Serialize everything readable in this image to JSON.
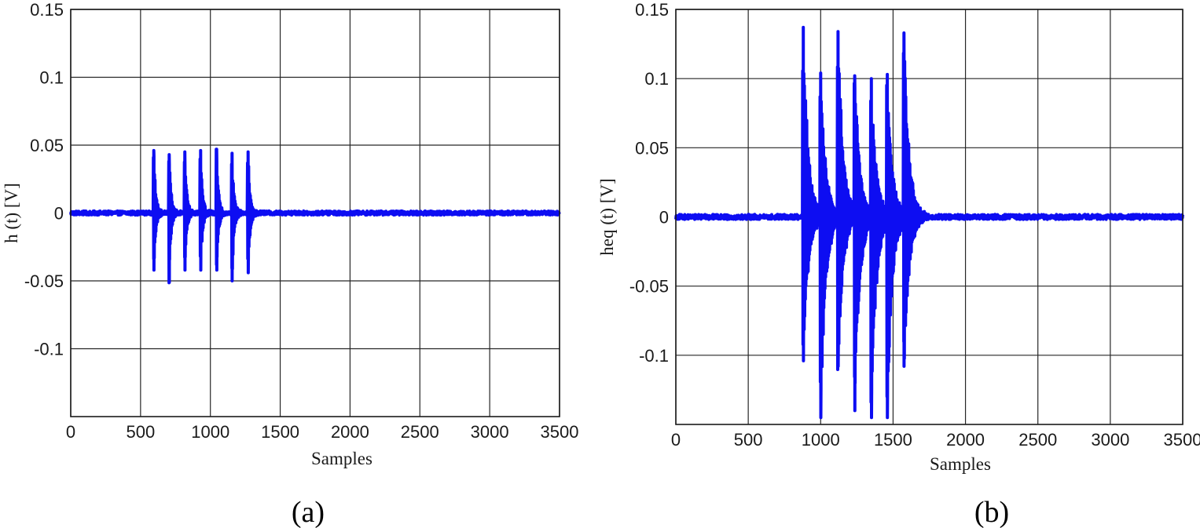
{
  "colors": {
    "series": "#0d0df2",
    "grid": "#262626",
    "background": "#ffffff"
  },
  "chart_data": [
    {
      "type": "line",
      "caption": "(a)",
      "title": "",
      "xlabel": "Samples",
      "ylabel": "h (t) [V]",
      "xlim": [
        0,
        3500
      ],
      "ylim": [
        -0.15,
        0.15
      ],
      "xticks": [
        0,
        500,
        1000,
        1500,
        2000,
        2500,
        3000,
        3500
      ],
      "xtick_labels": [
        "0",
        "500",
        "1000",
        "1500",
        "2000",
        "2500",
        "3000",
        "3500"
      ],
      "yticks": [
        0.15,
        0.1,
        0.05,
        0,
        -0.05,
        -0.1
      ],
      "ytick_labels": [
        "0.15",
        "0.1",
        "0.05",
        "0",
        "-0.05",
        "-0.1"
      ],
      "grid": true,
      "baseline_noise": 0.0015,
      "pulse_envelope_decay": 14,
      "pulses": [
        {
          "x": 595,
          "peak": 0.046,
          "trough": -0.042
        },
        {
          "x": 705,
          "peak": 0.043,
          "trough": -0.051
        },
        {
          "x": 817,
          "peak": 0.045,
          "trough": -0.042
        },
        {
          "x": 930,
          "peak": 0.046,
          "trough": -0.042
        },
        {
          "x": 1045,
          "peak": 0.047,
          "trough": -0.042
        },
        {
          "x": 1155,
          "peak": 0.044,
          "trough": -0.05
        },
        {
          "x": 1270,
          "peak": 0.045,
          "trough": -0.044
        }
      ]
    },
    {
      "type": "line",
      "caption": "(b)",
      "title": "",
      "xlabel": "Samples",
      "ylabel": "heq (t) [V]",
      "xlim": [
        0,
        3500
      ],
      "ylim": [
        -0.15,
        0.15
      ],
      "xticks": [
        0,
        500,
        1000,
        1500,
        2000,
        2500,
        3000,
        3500
      ],
      "xtick_labels": [
        "0",
        "500",
        "1000",
        "1500",
        "2000",
        "2500",
        "3000",
        "3500"
      ],
      "yticks": [
        0.15,
        0.1,
        0.05,
        0,
        -0.05,
        -0.1
      ],
      "ytick_labels": [
        "0.15",
        "0.1",
        "0.05",
        "0",
        "-0.05",
        "-0.1"
      ],
      "grid": true,
      "baseline_noise": 0.0018,
      "pulse_envelope_decay": 35,
      "pulses": [
        {
          "x": 880,
          "peak": 0.137,
          "trough": -0.104
        },
        {
          "x": 1000,
          "peak": 0.104,
          "trough": -0.145
        },
        {
          "x": 1120,
          "peak": 0.134,
          "trough": -0.108
        },
        {
          "x": 1235,
          "peak": 0.102,
          "trough": -0.14
        },
        {
          "x": 1350,
          "peak": 0.1,
          "trough": -0.145
        },
        {
          "x": 1460,
          "peak": 0.103,
          "trough": -0.145
        },
        {
          "x": 1575,
          "peak": 0.133,
          "trough": -0.108
        }
      ]
    }
  ]
}
